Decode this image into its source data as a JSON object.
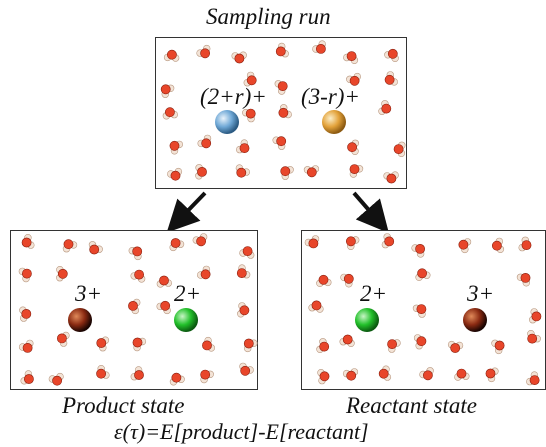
{
  "top": {
    "title": "Sampling run",
    "left_ion": "(2+r)+",
    "right_ion": "(3-r)+",
    "left_ion_color": "#6fa8d6",
    "right_ion_color": "#e3a23a"
  },
  "bottom_left": {
    "caption": "Product state",
    "left_ion": "3+",
    "right_ion": "2+",
    "left_ion_color": "#8a2a12",
    "right_ion_color": "#22c02a"
  },
  "bottom_right": {
    "caption": "Reactant state",
    "left_ion": "2+",
    "right_ion": "3+",
    "left_ion_color": "#22c02a",
    "right_ion_color": "#8a2a12"
  },
  "equation": "ε(τ)=E[product]-E[reactant]",
  "water_colors": {
    "oxygen": "#e8462a",
    "hydrogen": "#f3e3d6"
  }
}
